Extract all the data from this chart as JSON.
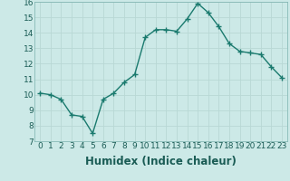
{
  "xlabel": "Humidex (Indice chaleur)",
  "x": [
    0,
    1,
    2,
    3,
    4,
    5,
    6,
    7,
    8,
    9,
    10,
    11,
    12,
    13,
    14,
    15,
    16,
    17,
    18,
    19,
    20,
    21,
    22,
    23
  ],
  "y": [
    10.1,
    10.0,
    9.7,
    8.7,
    8.6,
    7.5,
    9.7,
    10.1,
    10.8,
    11.3,
    13.7,
    14.2,
    14.2,
    14.1,
    14.9,
    15.9,
    15.3,
    14.4,
    13.3,
    12.8,
    12.7,
    12.6,
    11.8,
    11.1
  ],
  "line_color": "#1a7a6e",
  "marker_color": "#1a7a6e",
  "bg_color": "#cce9e7",
  "grid_color": "#b8d8d5",
  "ylim": [
    7,
    16
  ],
  "yticks": [
    7,
    8,
    9,
    10,
    11,
    12,
    13,
    14,
    15,
    16
  ],
  "xticks": [
    0,
    1,
    2,
    3,
    4,
    5,
    6,
    7,
    8,
    9,
    10,
    11,
    12,
    13,
    14,
    15,
    16,
    17,
    18,
    19,
    20,
    21,
    22,
    23
  ],
  "tick_label_fontsize": 6.5,
  "xlabel_fontsize": 8.5,
  "linewidth": 1.0,
  "markersize": 2.5
}
